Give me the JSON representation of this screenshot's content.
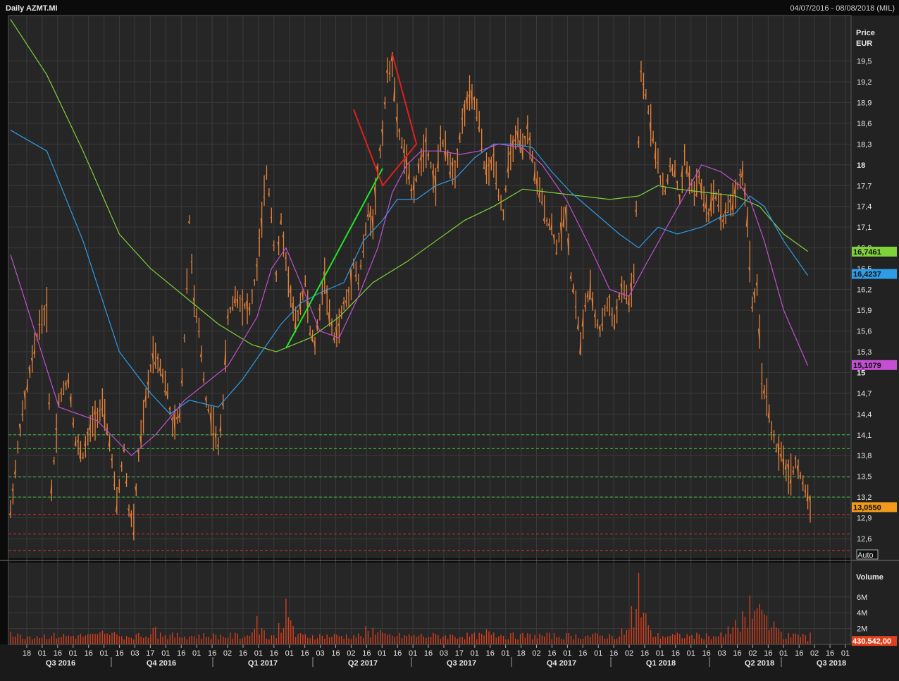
{
  "header": {
    "title": "Daily AZMT.MI",
    "date_range": "04/07/2016 - 08/08/2018 (MIL)"
  },
  "colors": {
    "background": "#262626",
    "grid": "#3a3a3a",
    "price_bars": "#e5823a",
    "volume_bars": "#e0401c",
    "ma_magenta": "#c44fd4",
    "ma_blue": "#2e9ce6",
    "ma_green": "#7fd23a",
    "support_green": "#35c83a",
    "support_red": "#d4322a",
    "last_price_tag": "#f29a1a",
    "trend_up": "#22e622",
    "trend_down": "#e21e1e"
  },
  "chart_data": [
    {
      "type": "ohlc",
      "title": "Daily AZMT.MI",
      "ylabel": "Price",
      "yunit": "EUR",
      "ylim": [
        12.42,
        20.0
      ],
      "grid": true,
      "y_ticks": [
        "19,5",
        "19,2",
        "18,9",
        "18,6",
        "18,3",
        "18",
        "17,7",
        "17,4",
        "17,1",
        "16,8",
        "16,5",
        "16,2",
        "15,9",
        "15,6",
        "15,3",
        "15",
        "14,7",
        "14,4",
        "14,1",
        "13,8",
        "13,5",
        "13,2",
        "12,9",
        "12,6"
      ],
      "bold_ticks": [
        "18",
        "15"
      ],
      "x_day_labels": [
        "18",
        "01",
        "16",
        "01",
        "16",
        "01",
        "16",
        "03",
        "17",
        "01",
        "16",
        "01",
        "16",
        "02",
        "16",
        "01",
        "16",
        "01",
        "16",
        "03",
        "16",
        "02",
        "16",
        "01",
        "16",
        "01",
        "16",
        "03",
        "17",
        "01",
        "16",
        "01",
        "18",
        "02",
        "16",
        "01",
        "16",
        "01",
        "16",
        "02",
        "16",
        "01",
        "16",
        "01",
        "16",
        "03",
        "16",
        "02",
        "16",
        "01",
        "16",
        "02",
        "16",
        "01"
      ],
      "x_quarter_labels": [
        "Q3 2016",
        "Q4 2016",
        "Q1 2017",
        "Q2 2017",
        "Q3 2017",
        "Q4 2017",
        "Q1 2018",
        "Q2 2018",
        "Q3 2018"
      ],
      "price_path": [
        [
          0,
          13.0
        ],
        [
          4,
          14.2
        ],
        [
          8,
          15.0
        ],
        [
          12,
          15.7
        ],
        [
          15,
          15.9
        ],
        [
          17,
          13.3
        ],
        [
          20,
          14.6
        ],
        [
          24,
          14.9
        ],
        [
          27,
          14.0
        ],
        [
          30,
          13.8
        ],
        [
          34,
          14.3
        ],
        [
          38,
          14.5
        ],
        [
          41,
          14.0
        ],
        [
          44,
          13.1
        ],
        [
          47,
          13.9
        ],
        [
          49,
          13.0
        ],
        [
          51,
          12.8
        ],
        [
          53,
          13.8
        ],
        [
          56,
          14.6
        ],
        [
          59,
          15.3
        ],
        [
          62,
          15.1
        ],
        [
          65,
          14.7
        ],
        [
          67,
          14.2
        ],
        [
          70,
          14.4
        ],
        [
          72,
          15.5
        ],
        [
          74,
          17.2
        ],
        [
          76,
          16.0
        ],
        [
          78,
          15.6
        ],
        [
          81,
          14.6
        ],
        [
          84,
          14.2
        ],
        [
          86,
          13.9
        ],
        [
          88,
          14.6
        ],
        [
          90,
          15.8
        ],
        [
          93,
          16.1
        ],
        [
          96,
          16.0
        ],
        [
          99,
          15.9
        ],
        [
          102,
          16.5
        ],
        [
          104,
          17.2
        ],
        [
          106,
          17.9
        ],
        [
          108,
          17.3
        ],
        [
          110,
          16.4
        ],
        [
          112,
          17.2
        ],
        [
          114,
          16.6
        ],
        [
          116,
          16.1
        ],
        [
          118,
          15.7
        ],
        [
          120,
          16.0
        ],
        [
          122,
          16.3
        ],
        [
          124,
          15.6
        ],
        [
          126,
          15.4
        ],
        [
          128,
          15.9
        ],
        [
          130,
          16.4
        ],
        [
          132,
          15.8
        ],
        [
          134,
          15.5
        ],
        [
          136,
          15.7
        ],
        [
          138,
          16.0
        ],
        [
          140,
          16.1
        ],
        [
          142,
          16.6
        ],
        [
          144,
          16.3
        ],
        [
          146,
          16.8
        ],
        [
          148,
          17.3
        ],
        [
          150,
          17.2
        ],
        [
          152,
          17.9
        ],
        [
          154,
          18.5
        ],
        [
          156,
          19.3
        ],
        [
          158,
          19.5
        ],
        [
          160,
          18.6
        ],
        [
          162,
          18.3
        ],
        [
          164,
          18.0
        ],
        [
          166,
          17.6
        ],
        [
          168,
          17.8
        ],
        [
          170,
          18.1
        ],
        [
          172,
          18.3
        ],
        [
          174,
          18.0
        ],
        [
          176,
          17.7
        ],
        [
          178,
          18.4
        ],
        [
          180,
          18.2
        ],
        [
          182,
          18.0
        ],
        [
          184,
          17.9
        ],
        [
          186,
          18.4
        ],
        [
          188,
          18.8
        ],
        [
          190,
          19.0
        ],
        [
          192,
          18.9
        ],
        [
          194,
          18.6
        ],
        [
          196,
          18.0
        ],
        [
          198,
          17.9
        ],
        [
          200,
          18.1
        ],
        [
          202,
          17.6
        ],
        [
          204,
          17.3
        ],
        [
          206,
          18.0
        ],
        [
          208,
          18.3
        ],
        [
          210,
          18.4
        ],
        [
          212,
          18.2
        ],
        [
          214,
          18.5
        ],
        [
          216,
          18.1
        ],
        [
          218,
          17.7
        ],
        [
          220,
          17.5
        ],
        [
          222,
          17.2
        ],
        [
          224,
          17.1
        ],
        [
          226,
          16.8
        ],
        [
          228,
          17.1
        ],
        [
          230,
          17.3
        ],
        [
          232,
          16.4
        ],
        [
          234,
          16.0
        ],
        [
          236,
          15.4
        ],
        [
          238,
          16.0
        ],
        [
          240,
          16.2
        ],
        [
          242,
          15.8
        ],
        [
          244,
          15.6
        ],
        [
          246,
          15.9
        ],
        [
          248,
          16.0
        ],
        [
          250,
          15.7
        ],
        [
          252,
          16.1
        ],
        [
          254,
          16.2
        ],
        [
          256,
          16.0
        ],
        [
          258,
          16.4
        ],
        [
          260,
          18.3
        ],
        [
          261,
          19.3
        ],
        [
          263,
          19.0
        ],
        [
          265,
          18.6
        ],
        [
          267,
          18.2
        ],
        [
          269,
          17.8
        ],
        [
          271,
          17.6
        ],
        [
          273,
          18.0
        ],
        [
          275,
          17.9
        ],
        [
          277,
          17.5
        ],
        [
          279,
          18.1
        ],
        [
          281,
          17.8
        ],
        [
          283,
          17.6
        ],
        [
          285,
          17.8
        ],
        [
          287,
          17.5
        ],
        [
          289,
          17.3
        ],
        [
          291,
          17.6
        ],
        [
          293,
          17.5
        ],
        [
          295,
          17.2
        ],
        [
          297,
          17.4
        ],
        [
          299,
          17.5
        ],
        [
          301,
          17.7
        ],
        [
          303,
          17.9
        ],
        [
          305,
          17.2
        ],
        [
          307,
          16.0
        ],
        [
          309,
          16.2
        ],
        [
          311,
          14.9
        ],
        [
          313,
          14.6
        ],
        [
          315,
          14.2
        ],
        [
          317,
          13.9
        ],
        [
          319,
          13.8
        ],
        [
          321,
          13.6
        ],
        [
          323,
          13.5
        ],
        [
          325,
          13.7
        ],
        [
          327,
          13.5
        ],
        [
          329,
          13.3
        ],
        [
          331,
          13.1
        ]
      ],
      "ma_magenta": [
        [
          0,
          16.7
        ],
        [
          20,
          14.5
        ],
        [
          36,
          14.3
        ],
        [
          50,
          13.8
        ],
        [
          60,
          14.1
        ],
        [
          72,
          14.6
        ],
        [
          90,
          15.1
        ],
        [
          102,
          15.8
        ],
        [
          108,
          16.5
        ],
        [
          114,
          16.8
        ],
        [
          120,
          16.3
        ],
        [
          128,
          15.6
        ],
        [
          136,
          15.5
        ],
        [
          144,
          16.1
        ],
        [
          152,
          16.8
        ],
        [
          158,
          17.6
        ],
        [
          164,
          18.0
        ],
        [
          170,
          18.2
        ],
        [
          178,
          18.2
        ],
        [
          186,
          18.15
        ],
        [
          194,
          18.2
        ],
        [
          202,
          18.3
        ],
        [
          212,
          18.25
        ],
        [
          220,
          18.0
        ],
        [
          230,
          17.5
        ],
        [
          240,
          16.8
        ],
        [
          248,
          16.2
        ],
        [
          256,
          16.1
        ],
        [
          262,
          16.5
        ],
        [
          270,
          17.0
        ],
        [
          278,
          17.5
        ],
        [
          286,
          18.0
        ],
        [
          294,
          17.9
        ],
        [
          302,
          17.7
        ],
        [
          306,
          17.5
        ],
        [
          312,
          16.9
        ],
        [
          320,
          15.9
        ],
        [
          330,
          15.1
        ]
      ],
      "ma_blue": [
        [
          0,
          18.5
        ],
        [
          15,
          18.2
        ],
        [
          30,
          16.9
        ],
        [
          45,
          15.3
        ],
        [
          58,
          14.7
        ],
        [
          66,
          14.4
        ],
        [
          74,
          14.6
        ],
        [
          86,
          14.5
        ],
        [
          96,
          14.9
        ],
        [
          104,
          15.3
        ],
        [
          112,
          15.7
        ],
        [
          120,
          16.0
        ],
        [
          128,
          16.15
        ],
        [
          138,
          16.3
        ],
        [
          146,
          16.9
        ],
        [
          154,
          17.2
        ],
        [
          160,
          17.5
        ],
        [
          168,
          17.5
        ],
        [
          176,
          17.7
        ],
        [
          184,
          17.8
        ],
        [
          192,
          18.1
        ],
        [
          200,
          18.3
        ],
        [
          208,
          18.3
        ],
        [
          216,
          18.25
        ],
        [
          224,
          17.9
        ],
        [
          232,
          17.6
        ],
        [
          242,
          17.3
        ],
        [
          252,
          17.0
        ],
        [
          260,
          16.8
        ],
        [
          268,
          17.1
        ],
        [
          276,
          17.0
        ],
        [
          286,
          17.1
        ],
        [
          294,
          17.25
        ],
        [
          300,
          17.3
        ],
        [
          306,
          17.55
        ],
        [
          312,
          17.4
        ],
        [
          320,
          16.9
        ],
        [
          330,
          16.4
        ]
      ],
      "ma_green": [
        [
          0,
          20.1
        ],
        [
          15,
          19.3
        ],
        [
          30,
          18.2
        ],
        [
          45,
          17.0
        ],
        [
          58,
          16.5
        ],
        [
          72,
          16.1
        ],
        [
          86,
          15.7
        ],
        [
          100,
          15.4
        ],
        [
          110,
          15.3
        ],
        [
          124,
          15.5
        ],
        [
          136,
          15.8
        ],
        [
          150,
          16.3
        ],
        [
          164,
          16.6
        ],
        [
          176,
          16.9
        ],
        [
          188,
          17.2
        ],
        [
          200,
          17.4
        ],
        [
          212,
          17.65
        ],
        [
          224,
          17.6
        ],
        [
          236,
          17.55
        ],
        [
          248,
          17.5
        ],
        [
          260,
          17.55
        ],
        [
          268,
          17.7
        ],
        [
          276,
          17.65
        ],
        [
          288,
          17.6
        ],
        [
          300,
          17.55
        ],
        [
          310,
          17.4
        ],
        [
          320,
          17.0
        ],
        [
          330,
          16.75
        ]
      ],
      "ma_last_values": [
        {
          "value": 16.7461,
          "label": "16,7461",
          "color": "#7fd23a"
        },
        {
          "value": 16.4237,
          "label": "16,4237",
          "color": "#2e9ce6"
        },
        {
          "value": 15.1079,
          "label": "15,1079",
          "color": "#c44fd4"
        },
        {
          "value": 13.055,
          "label": "13,0550",
          "color": "#f29a1a"
        }
      ],
      "support_levels_green": [
        14.1,
        13.9,
        13.49,
        13.2
      ],
      "support_levels_red": [
        12.95,
        12.67,
        12.43
      ],
      "trend_lines": [
        {
          "color": "up",
          "points": [
            [
              114,
              15.35
            ],
            [
              154,
              17.95
            ]
          ]
        },
        {
          "color": "down",
          "points": [
            [
              158,
              19.6
            ],
            [
              168,
              18.3
            ],
            [
              154,
              17.7
            ],
            [
              142,
              18.8
            ]
          ]
        }
      ],
      "button_label": "Auto"
    },
    {
      "type": "bar",
      "title": "Volume",
      "ylabel": "Volume",
      "y_ticks": [
        "6M",
        "4M",
        "2M"
      ],
      "y_tick_values": [
        6000000,
        4000000,
        2000000
      ],
      "ylim": [
        0,
        10000000
      ],
      "last_value_label": "430.542,00",
      "spikes": [
        [
          0,
          1600000
        ],
        [
          40,
          1400000
        ],
        [
          60,
          2200000
        ],
        [
          102,
          3600000
        ],
        [
          114,
          5800000
        ],
        [
          150,
          2100000
        ],
        [
          200,
          1500000
        ],
        [
          256,
          1900000
        ],
        [
          260,
          9000000
        ],
        [
          262,
          4000000
        ],
        [
          300,
          3100000
        ],
        [
          306,
          6200000
        ],
        [
          310,
          4800000
        ],
        [
          312,
          3800000
        ],
        [
          316,
          2900000
        ],
        [
          330,
          430542
        ]
      ]
    }
  ]
}
